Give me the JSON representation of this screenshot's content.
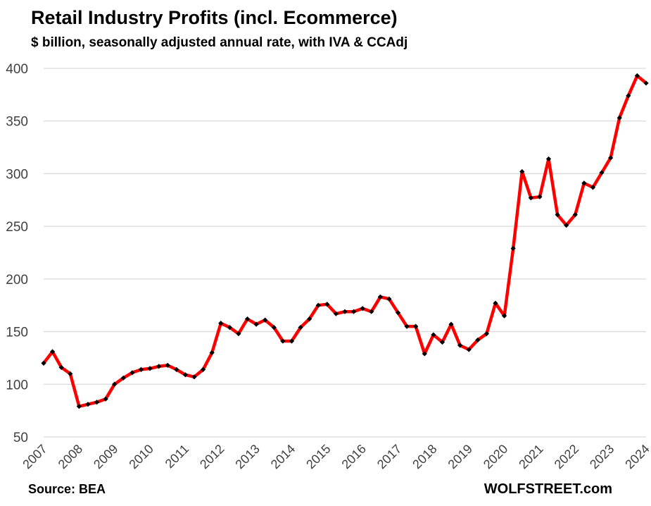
{
  "chart_data": {
    "type": "line",
    "title": "Retail Industry Profits (incl. Ecommerce)",
    "subtitle": "$ billion, seasonally adjusted annual rate, with IVA & CCAdj",
    "source": "Source: BEA",
    "brand": "WOLFSTREET.com",
    "xlabel": "",
    "ylabel": "",
    "ylim": [
      50,
      400
    ],
    "yticks": [
      "50",
      "100",
      "150",
      "200",
      "250",
      "300",
      "350",
      "400"
    ],
    "xticks": [
      "2007",
      "2008",
      "2009",
      "2010",
      "2011",
      "2012",
      "2013",
      "2014",
      "2015",
      "2016",
      "2017",
      "2018",
      "2019",
      "2020",
      "2021",
      "2022",
      "2023",
      "2024"
    ],
    "grid": true,
    "line_color": "#ff0000",
    "marker_color": "#000000",
    "series": [
      {
        "name": "Retail Industry Profits",
        "values": [
          120,
          131,
          116,
          110,
          79,
          81,
          83,
          86,
          100,
          106,
          111,
          114,
          115,
          117,
          118,
          114,
          109,
          107,
          114,
          130,
          158,
          154,
          148,
          162,
          157,
          161,
          154,
          141,
          141,
          154,
          162,
          175,
          176,
          167,
          169,
          169,
          172,
          169,
          183,
          181,
          168,
          155,
          155,
          129,
          147,
          140,
          157,
          137,
          133,
          142,
          148,
          177,
          165,
          229,
          302,
          277,
          278,
          314,
          261,
          251,
          261,
          291,
          287,
          301,
          315,
          353,
          374,
          393,
          386
        ]
      }
    ]
  }
}
